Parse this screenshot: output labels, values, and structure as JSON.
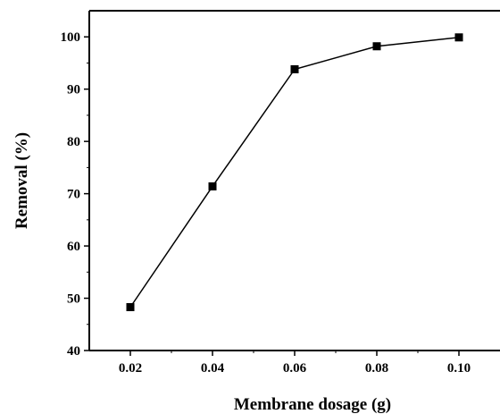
{
  "chart_data": {
    "type": "line",
    "title": "",
    "xlabel": "Membrane dosage (g)",
    "ylabel": "Removal (%)",
    "x": [
      0.02,
      0.04,
      0.06,
      0.08,
      0.1
    ],
    "x_tick_labels": [
      "0.02",
      "0.04",
      "0.06",
      "0.08",
      "0.10"
    ],
    "xlim": [
      0.01,
      0.11
    ],
    "ylim": [
      40,
      105
    ],
    "y_ticks": [
      40,
      50,
      60,
      70,
      80,
      90,
      100
    ],
    "y_tick_labels": [
      "40",
      "50",
      "60",
      "70",
      "80",
      "90",
      "100"
    ],
    "series": [
      {
        "values": [
          48.3,
          71.4,
          93.8,
          98.2,
          99.9
        ],
        "marker": "square",
        "color": "#000000"
      }
    ],
    "grid": false,
    "legend": "none"
  }
}
